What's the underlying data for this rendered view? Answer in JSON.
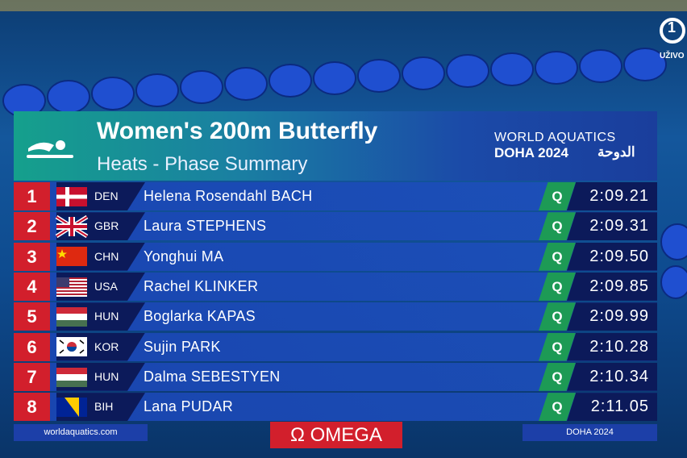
{
  "broadcast": {
    "channel": "1",
    "live": "UŽIVO"
  },
  "header": {
    "title": "Women's 200m Butterfly",
    "subtitle": "Heats - Phase Summary",
    "organizer": "WORLD AQUATICS",
    "event": "DOHA 2024",
    "event_arabic": "الدوحة"
  },
  "table": {
    "rows": [
      {
        "rank": "1",
        "country": "DEN",
        "name": "Helena Rosendahl BACH",
        "qualifier": "Q",
        "time": "2:09.21"
      },
      {
        "rank": "2",
        "country": "GBR",
        "name": "Laura STEPHENS",
        "qualifier": "Q",
        "time": "2:09.31"
      },
      {
        "rank": "3",
        "country": "CHN",
        "name": "Yonghui MA",
        "qualifier": "Q",
        "time": "2:09.50"
      },
      {
        "rank": "4",
        "country": "USA",
        "name": "Rachel KLINKER",
        "qualifier": "Q",
        "time": "2:09.85"
      },
      {
        "rank": "5",
        "country": "HUN",
        "name": "Boglarka KAPAS",
        "qualifier": "Q",
        "time": "2:09.99"
      },
      {
        "rank": "6",
        "country": "KOR",
        "name": "Sujin PARK",
        "qualifier": "Q",
        "time": "2:10.28"
      },
      {
        "rank": "7",
        "country": "HUN",
        "name": "Dalma SEBESTYEN",
        "qualifier": "Q",
        "time": "2:10.34"
      },
      {
        "rank": "8",
        "country": "BIH",
        "name": "Lana PUDAR",
        "qualifier": "Q",
        "time": "2:11.05"
      }
    ]
  },
  "footer": {
    "website": "worldaquatics.com",
    "sponsor_symbol": "Ω",
    "sponsor": "OMEGA",
    "event": "DOHA 2024"
  }
}
